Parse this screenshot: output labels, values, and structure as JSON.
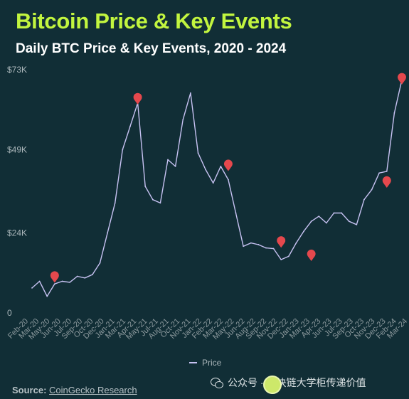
{
  "title": "Bitcoin Price & Key Events",
  "subtitle": "Daily BTC Price & Key Events, 2020 - 2024",
  "legend_label": "Price",
  "source": {
    "label": "Source:",
    "text": "CoinGecko Research"
  },
  "watermark": {
    "text": "公众号 · 区块链大学柜传递价值",
    "icon": "wechat-icon",
    "logo_icon": "lime-fruit-icon"
  },
  "colors": {
    "background": "#112e36",
    "title": "#c2f53f",
    "line": "#c7c2f2",
    "marker": "#e5484d",
    "tick_text": "#aab6ba"
  },
  "chart_data": {
    "type": "line",
    "title": "Bitcoin Price & Key Events",
    "subtitle": "Daily BTC Price & Key Events, 2020 - 2024",
    "xlabel": "",
    "ylabel": "",
    "y_ticks": [
      {
        "value": 0,
        "label": "0"
      },
      {
        "value": 24000,
        "label": "$24K"
      },
      {
        "value": 49000,
        "label": "$49K"
      },
      {
        "value": 73000,
        "label": "$73K"
      }
    ],
    "ylim": [
      0,
      73000
    ],
    "xlim": [
      "2020-02",
      "2024-03"
    ],
    "x_tick_labels": [
      "Feb-20",
      "Mar-20",
      "May-20",
      "Jun-20",
      "Jul-20",
      "Sep-20",
      "Oct-20",
      "Dec-20",
      "Jan-21",
      "Mar-21",
      "Apr-21",
      "May-21",
      "Jul-21",
      "Aug-21",
      "Oct-21",
      "Nov-21",
      "Jan-22",
      "Feb-22",
      "Mar-22",
      "May-22",
      "Jun-22",
      "Aug-22",
      "Sep-22",
      "Nov-22",
      "Dec-22",
      "Jan-23",
      "Mar-23",
      "Apr-23",
      "Jun-23",
      "Jul-23",
      "Sep-23",
      "Oct-23",
      "Nov-23",
      "Dec-23",
      "Feb-24",
      "Mar-24"
    ],
    "grid": false,
    "legend_position": "bottom-center",
    "series": [
      {
        "name": "Price",
        "x": [
          "2020-02",
          "2020-03",
          "2020-04",
          "2020-05",
          "2020-06",
          "2020-07",
          "2020-08",
          "2020-09",
          "2020-10",
          "2020-11",
          "2020-12",
          "2021-01",
          "2021-02",
          "2021-03",
          "2021-04",
          "2021-05",
          "2021-06",
          "2021-07",
          "2021-08",
          "2021-09",
          "2021-10",
          "2021-11",
          "2021-12",
          "2022-01",
          "2022-02",
          "2022-03",
          "2022-04",
          "2022-05",
          "2022-06",
          "2022-07",
          "2022-08",
          "2022-09",
          "2022-10",
          "2022-11",
          "2022-12",
          "2023-01",
          "2023-02",
          "2023-03",
          "2023-04",
          "2023-05",
          "2023-06",
          "2023-07",
          "2023-08",
          "2023-09",
          "2023-10",
          "2023-11",
          "2023-12",
          "2024-01",
          "2024-02",
          "2024-03"
        ],
        "y": [
          7500,
          9500,
          5000,
          8700,
          9500,
          9200,
          11000,
          10500,
          11500,
          15000,
          24000,
          33000,
          49000,
          56000,
          63000,
          38000,
          34000,
          33000,
          46000,
          44000,
          58000,
          66000,
          48000,
          43000,
          39000,
          44000,
          40000,
          30000,
          20000,
          21000,
          20500,
          19500,
          19300,
          16000,
          17000,
          21000,
          24500,
          27500,
          29000,
          27000,
          30000,
          30000,
          27500,
          26500,
          34000,
          37000,
          42000,
          42500,
          60000,
          70000
        ]
      }
    ],
    "key_events": [
      {
        "x": "2020-05",
        "y": 9500
      },
      {
        "x": "2021-04",
        "y": 63000
      },
      {
        "x": "2022-04",
        "y": 43000
      },
      {
        "x": "2022-11",
        "y": 20000
      },
      {
        "x": "2023-03",
        "y": 16000
      },
      {
        "x": "2024-01",
        "y": 38000
      },
      {
        "x": "2024-03",
        "y": 69000
      }
    ]
  }
}
